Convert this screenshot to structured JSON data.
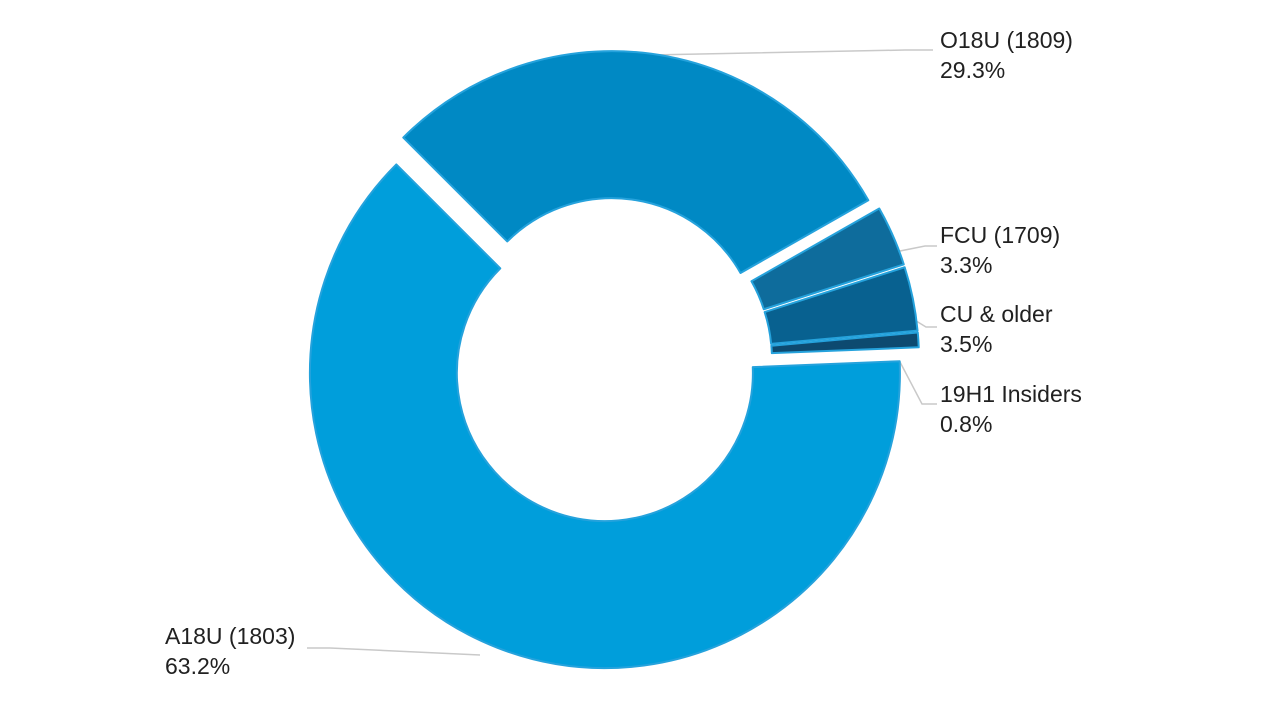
{
  "chart_data": {
    "type": "pie",
    "subtype": "donut-exploded",
    "title": "",
    "legend": "none",
    "labels_style": "outside-callouts (label + percent)",
    "start_angle_deg": -45,
    "clockwise": true,
    "segments": [
      {
        "label": "O18U (1809)",
        "value": 29.3,
        "display": "29.3%",
        "color": "#0089C4"
      },
      {
        "label": "FCU (1709)",
        "value": 3.3,
        "display": "3.3%",
        "color": "#0E6C9C"
      },
      {
        "label": "CU & older",
        "value": 3.5,
        "display": "3.5%",
        "color": "#086190"
      },
      {
        "label": "19H1 Insiders",
        "value": 0.8,
        "display": "0.8%",
        "color": "#0D4A70"
      },
      {
        "label": "A18U (1803)",
        "value": 63.2,
        "display": "63.2%",
        "color": "#009EDB"
      }
    ],
    "slice_border_color": "#25A2DC",
    "leader_line_color": "#C9C9C9",
    "label_text_color": "#212121",
    "background_color": "#FFFFFF"
  }
}
